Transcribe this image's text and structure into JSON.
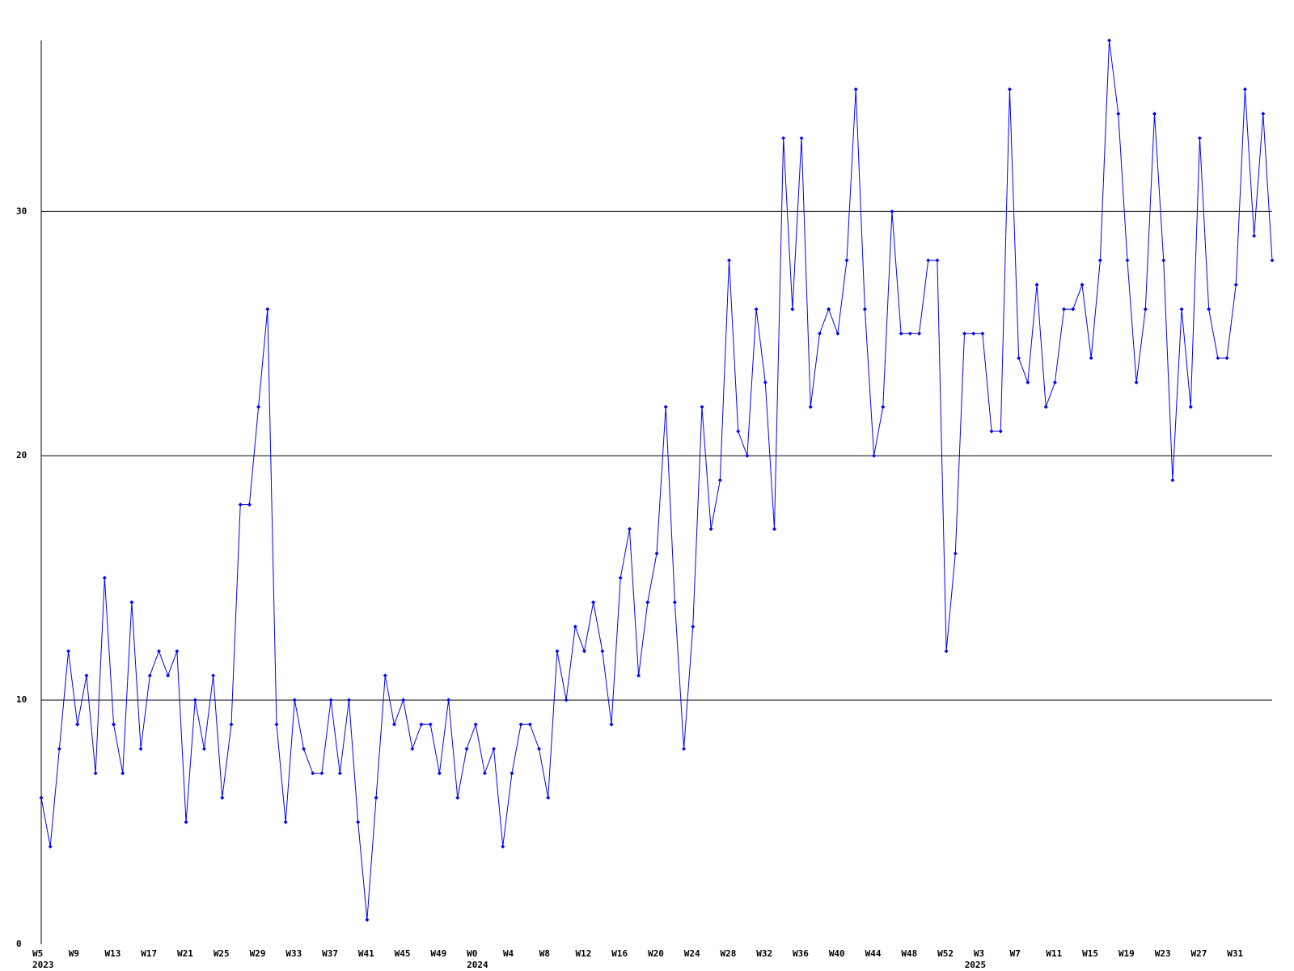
{
  "chart_data": {
    "type": "line",
    "values": [
      6,
      4,
      8,
      12,
      9,
      11,
      7,
      15,
      9,
      7,
      14,
      8,
      11,
      12,
      11,
      12,
      5,
      10,
      8,
      11,
      6,
      9,
      18,
      18,
      22,
      26,
      9,
      5,
      10,
      8,
      7,
      7,
      10,
      7,
      10,
      5,
      1,
      6,
      11,
      9,
      10,
      8,
      9,
      9,
      7,
      10,
      6,
      8,
      9,
      7,
      8,
      4,
      7,
      9,
      9,
      8,
      6,
      12,
      10,
      13,
      12,
      14,
      12,
      9,
      15,
      17,
      11,
      14,
      16,
      22,
      14,
      8,
      13,
      22,
      17,
      19,
      28,
      21,
      20,
      26,
      23,
      17,
      33,
      26,
      33,
      22,
      25,
      26,
      25,
      28,
      35,
      26,
      20,
      22,
      30,
      25,
      25,
      25,
      28,
      28,
      12,
      16,
      25,
      25,
      25,
      21,
      21,
      35,
      24,
      23,
      27,
      22,
      23,
      26,
      26,
      27,
      24,
      28,
      37,
      34,
      28,
      23,
      26,
      34,
      28,
      19,
      26,
      22,
      33,
      26,
      24,
      24,
      27,
      35,
      29,
      34,
      28
    ],
    "categories": [
      "W5",
      null,
      null,
      null,
      "W9",
      null,
      null,
      null,
      "W13",
      null,
      null,
      null,
      "W17",
      null,
      null,
      null,
      "W21",
      null,
      null,
      null,
      "W25",
      null,
      null,
      null,
      "W29",
      null,
      null,
      null,
      "W33",
      null,
      null,
      null,
      "W37",
      null,
      null,
      null,
      "W41",
      null,
      null,
      null,
      "W45",
      null,
      null,
      null,
      "W49",
      null,
      null,
      null,
      "W0",
      null,
      null,
      null,
      "W4",
      null,
      null,
      null,
      "W8",
      null,
      null,
      null,
      "W12",
      null,
      null,
      null,
      "W16",
      null,
      null,
      null,
      "W20",
      null,
      null,
      null,
      "W24",
      null,
      null,
      null,
      "W28",
      null,
      null,
      null,
      "W32",
      null,
      null,
      null,
      "W36",
      null,
      null,
      null,
      "W40",
      null,
      null,
      null,
      "W44",
      null,
      null,
      null,
      "W48",
      null,
      null,
      null,
      "W52",
      null,
      null,
      null,
      "W3",
      null,
      null,
      null,
      "W7",
      null,
      null,
      null,
      "W11",
      null,
      null,
      null,
      "W15",
      null,
      null,
      null,
      "W19",
      null,
      null,
      null,
      "W23",
      null,
      null,
      null,
      "W27",
      null,
      null,
      null,
      "W31",
      null,
      null,
      null,
      null
    ],
    "category_groups": [
      "2023",
      null,
      null,
      null,
      null,
      null,
      null,
      null,
      null,
      null,
      null,
      null,
      null,
      null,
      null,
      null,
      null,
      null,
      null,
      null,
      null,
      null,
      null,
      null,
      null,
      null,
      null,
      null,
      null,
      null,
      null,
      null,
      null,
      null,
      null,
      null,
      null,
      null,
      null,
      null,
      null,
      null,
      null,
      null,
      null,
      null,
      null,
      null,
      "2024",
      null,
      null,
      null,
      null,
      null,
      null,
      null,
      null,
      null,
      null,
      null,
      null,
      null,
      null,
      null,
      null,
      null,
      null,
      null,
      null,
      null,
      null,
      null,
      null,
      null,
      null,
      null,
      null,
      null,
      null,
      null,
      null,
      null,
      null,
      null,
      null,
      null,
      null,
      null,
      null,
      null,
      null,
      null,
      null,
      null,
      null,
      null,
      null,
      null,
      null,
      null,
      null,
      null,
      null,
      "2025",
      null,
      null,
      null,
      null,
      null,
      null,
      null,
      null,
      null,
      null,
      null,
      null,
      null,
      null,
      null,
      null,
      null,
      null,
      null,
      null,
      null,
      null,
      null,
      null,
      null,
      null,
      null,
      null,
      null,
      null,
      null,
      null,
      null,
      null,
      null
    ],
    "color": "#0000ff",
    "ylim": [
      0,
      37
    ],
    "yticks": [
      0,
      10,
      20,
      30
    ],
    "grid": true
  }
}
